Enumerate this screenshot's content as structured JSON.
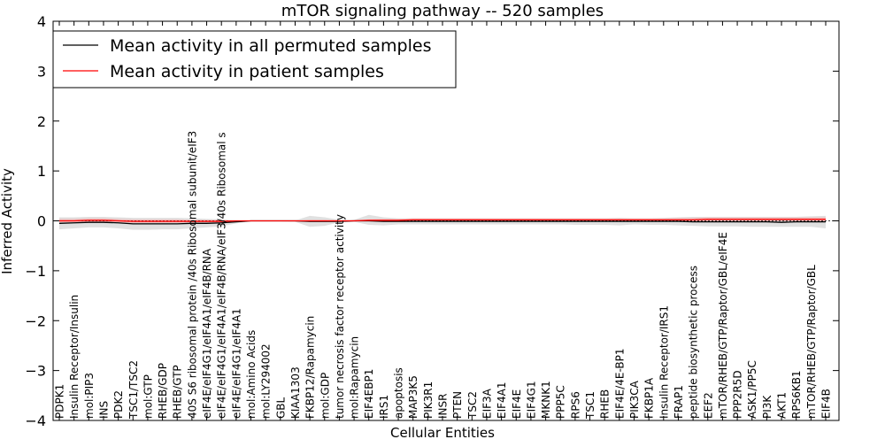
{
  "chart_data": {
    "type": "line",
    "title": "mTOR signaling pathway -- 520 samples",
    "xlabel": "Cellular Entities",
    "ylabel": "Inferred Activity",
    "ylim": [
      -4,
      4
    ],
    "yticks": [
      "−4",
      "−3",
      "−2",
      "−1",
      "0",
      "1",
      "2",
      "3",
      "4"
    ],
    "ytick_values": [
      -4,
      -3,
      -2,
      -1,
      0,
      1,
      2,
      3,
      4
    ],
    "legend": {
      "placement": "top-left",
      "entries": [
        {
          "name": "Mean activity in all permuted samples",
          "color": "#000000"
        },
        {
          "name": "Mean activity in patient samples",
          "color": "#ff0000"
        }
      ]
    },
    "categories": [
      "PDPK1",
      "Insulin Receptor/Insulin",
      "mol:PIP3",
      "INS",
      "PDK2",
      "TSC1/TSC2",
      "mol:GTP",
      "RHEB/GDP",
      "RHEB/GTP",
      "40S S6 ribosomal protein /40s Ribosomal subunit/eIF3",
      "eIF4E/eIF4G1/eIF4A1/eIF4B/RNA",
      "eIF4E/eIF4G1/eIF4A1/eIF4B/RNA/eIF3/40s Ribosomal s",
      "eIF4E/eIF4G1/eIF4A1",
      "mol:Amino Acids",
      "mol:LY294002",
      "GBL",
      "KIAA1303",
      "FKBP12/Rapamycin",
      "mol:GDP",
      "tumor necrosis factor receptor activity",
      "mol:Rapamycin",
      "EIF4EBP1",
      "IRS1",
      "apoptosis",
      "MAP3K5",
      "PIK3R1",
      "INSR",
      "PTEN",
      "TSC2",
      "EIF3A",
      "EIF4A1",
      "EIF4E",
      "EIF4G1",
      "MKNK1",
      "PPP5C",
      "RPS6",
      "TSC1",
      "RHEB",
      "EIF4E/4E-BP1",
      "PIK3CA",
      "FKBP1A",
      "Insulin Receptor/IRS1",
      "FRAP1",
      "peptide biosynthetic process",
      "EEF2",
      "mTOR/RHEB/GTP/Raptor/GBL/eIF4E",
      "PPP2R5D",
      "ASK1/PP5C",
      "PI3K",
      "AKT1",
      "RPS6KB1",
      "mTOR/RHEB/GTP/Raptor/GBL",
      "EIF4B"
    ],
    "series": [
      {
        "name": "Mean activity in all permuted samples",
        "color": "#000000",
        "values": [
          -0.05,
          -0.04,
          -0.03,
          -0.03,
          -0.04,
          -0.06,
          -0.06,
          -0.06,
          -0.06,
          -0.05,
          -0.05,
          -0.04,
          -0.02,
          0.0,
          0.0,
          0.0,
          0.0,
          -0.01,
          -0.01,
          -0.01,
          0.0,
          0.0,
          -0.01,
          -0.01,
          -0.01,
          -0.01,
          -0.01,
          -0.01,
          -0.01,
          -0.01,
          -0.01,
          -0.01,
          -0.01,
          -0.01,
          -0.01,
          -0.01,
          -0.01,
          -0.01,
          -0.01,
          -0.01,
          -0.01,
          -0.01,
          -0.01,
          -0.02,
          -0.02,
          -0.02,
          -0.02,
          -0.02,
          -0.02,
          -0.03,
          -0.02,
          -0.02,
          -0.02
        ]
      },
      {
        "name": "Mean activity in patient samples",
        "color": "#ff0000",
        "values": [
          0.0,
          0.0,
          0.01,
          0.01,
          0.0,
          -0.01,
          -0.01,
          -0.01,
          -0.01,
          -0.01,
          -0.01,
          -0.01,
          0.0,
          0.0,
          0.0,
          0.0,
          0.0,
          0.0,
          0.0,
          0.0,
          0.0,
          0.01,
          0.01,
          0.01,
          0.02,
          0.02,
          0.02,
          0.02,
          0.02,
          0.02,
          0.02,
          0.02,
          0.02,
          0.02,
          0.02,
          0.02,
          0.02,
          0.02,
          0.02,
          0.02,
          0.02,
          0.02,
          0.02,
          0.02,
          0.03,
          0.03,
          0.03,
          0.03,
          0.03,
          0.03,
          0.03,
          0.03,
          0.03
        ]
      }
    ],
    "bands": [
      {
        "series": "Mean activity in all permuted samples",
        "color": "#cccccc",
        "lower": [
          -0.17,
          -0.15,
          -0.13,
          -0.13,
          -0.15,
          -0.18,
          -0.18,
          -0.17,
          -0.17,
          -0.15,
          -0.13,
          -0.11,
          -0.05,
          -0.01,
          -0.01,
          -0.01,
          -0.02,
          -0.12,
          -0.1,
          -0.03,
          -0.02,
          -0.08,
          -0.09,
          -0.07,
          -0.07,
          -0.07,
          -0.07,
          -0.07,
          -0.07,
          -0.07,
          -0.07,
          -0.07,
          -0.07,
          -0.07,
          -0.07,
          -0.08,
          -0.08,
          -0.08,
          -0.09,
          -0.07,
          -0.08,
          -0.08,
          -0.09,
          -0.1,
          -0.11,
          -0.11,
          -0.11,
          -0.12,
          -0.12,
          -0.12,
          -0.12,
          -0.12,
          -0.15
        ],
        "upper": [
          0.07,
          0.07,
          0.08,
          0.08,
          0.07,
          0.06,
          0.06,
          0.06,
          0.06,
          0.05,
          0.04,
          0.03,
          0.01,
          0.01,
          0.01,
          0.01,
          0.01,
          0.1,
          0.07,
          0.02,
          0.02,
          0.12,
          0.07,
          0.05,
          0.05,
          0.05,
          0.05,
          0.05,
          0.05,
          0.05,
          0.05,
          0.05,
          0.05,
          0.05,
          0.05,
          0.05,
          0.05,
          0.05,
          0.06,
          0.05,
          0.05,
          0.06,
          0.07,
          0.08,
          0.08,
          0.08,
          0.08,
          0.08,
          0.08,
          0.08,
          0.08,
          0.09,
          0.1
        ]
      },
      {
        "series": "Mean activity in patient samples",
        "color": "#ff9999",
        "lower": [
          -0.03,
          -0.03,
          -0.02,
          -0.02,
          -0.03,
          -0.04,
          -0.04,
          -0.04,
          -0.04,
          -0.03,
          -0.03,
          -0.03,
          -0.01,
          0.0,
          0.0,
          0.0,
          0.0,
          -0.02,
          -0.02,
          -0.01,
          -0.01,
          -0.01,
          -0.01,
          -0.01,
          -0.01,
          -0.01,
          -0.01,
          -0.01,
          -0.01,
          -0.01,
          -0.01,
          -0.01,
          -0.01,
          -0.01,
          -0.01,
          -0.01,
          -0.01,
          -0.01,
          -0.01,
          -0.01,
          -0.01,
          -0.01,
          -0.01,
          -0.01,
          -0.01,
          -0.01,
          -0.01,
          -0.01,
          -0.01,
          -0.01,
          -0.01,
          -0.01,
          -0.01
        ],
        "upper": [
          0.04,
          0.04,
          0.05,
          0.05,
          0.04,
          0.03,
          0.03,
          0.03,
          0.03,
          0.02,
          0.02,
          0.02,
          0.01,
          0.0,
          0.0,
          0.0,
          0.0,
          0.02,
          0.02,
          0.01,
          0.01,
          0.03,
          0.04,
          0.04,
          0.05,
          0.05,
          0.05,
          0.05,
          0.05,
          0.05,
          0.05,
          0.05,
          0.05,
          0.05,
          0.05,
          0.05,
          0.05,
          0.05,
          0.05,
          0.05,
          0.05,
          0.05,
          0.06,
          0.06,
          0.07,
          0.07,
          0.07,
          0.07,
          0.07,
          0.07,
          0.07,
          0.07,
          0.07
        ]
      }
    ],
    "grid": false
  }
}
